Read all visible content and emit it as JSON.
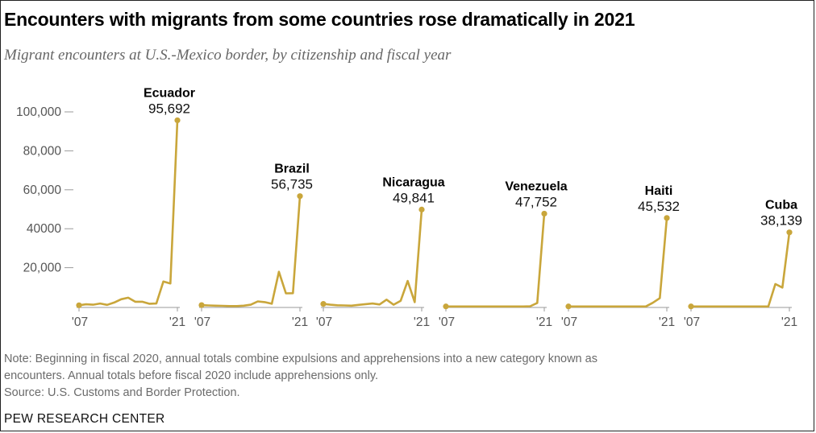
{
  "title": "Encounters with migrants from some countries rose dramatically in 2021",
  "subtitle": "Migrant encounters at U.S.-Mexico border, by citizenship and fiscal year",
  "note_line1": "Note: Beginning in fiscal 2020, annual totals combine expulsions and apprehensions into a new category known as",
  "note_line2": "encounters. Annual totals before fiscal 2020 include apprehensions only.",
  "source": "Source: U.S. Customs and Border Protection.",
  "footer": "PEW RESEARCH CENTER",
  "colors": {
    "line": "#c9a63b",
    "axis": "#9a9a9a",
    "tick_text": "#555555"
  },
  "chart_data": {
    "type": "line",
    "x": [
      2007,
      2008,
      2009,
      2010,
      2011,
      2012,
      2013,
      2014,
      2015,
      2016,
      2017,
      2018,
      2019,
      2020,
      2021
    ],
    "x_tick_labels": [
      "'07",
      "'21"
    ],
    "y_ticks": [
      20000,
      40000,
      60000,
      80000,
      100000
    ],
    "y_tick_labels": [
      "20,000",
      "40000",
      "60,000",
      "80,000",
      "100,000"
    ],
    "ylim": [
      0,
      100000
    ],
    "grid": false,
    "series": [
      {
        "name": "Ecuador",
        "values": [
          700,
          1200,
          1000,
          1600,
          900,
          2100,
          3800,
          4600,
          2500,
          2500,
          1500,
          1600,
          12900,
          11900,
          95692
        ],
        "label": "95,692"
      },
      {
        "name": "Brazil",
        "values": [
          800,
          600,
          500,
          400,
          300,
          300,
          500,
          1000,
          2700,
          2300,
          1500,
          17900,
          6800,
          6900,
          56735
        ],
        "label": "56,735"
      },
      {
        "name": "Nicaragua",
        "values": [
          1400,
          1000,
          700,
          600,
          500,
          900,
          1300,
          1600,
          1100,
          3600,
          1000,
          3000,
          13200,
          2300,
          49841
        ],
        "label": "49,841"
      },
      {
        "name": "Venezuela",
        "values": [
          100,
          100,
          100,
          100,
          100,
          100,
          100,
          100,
          100,
          100,
          100,
          100,
          200,
          1900,
          47752
        ],
        "label": "47,752"
      },
      {
        "name": "Haiti",
        "values": [
          100,
          100,
          100,
          100,
          100,
          100,
          100,
          100,
          100,
          100,
          100,
          100,
          2000,
          4400,
          45532
        ],
        "label": "45,532"
      },
      {
        "name": "Cuba",
        "values": [
          100,
          100,
          100,
          100,
          100,
          100,
          100,
          100,
          100,
          100,
          100,
          100,
          11600,
          9800,
          38139
        ],
        "label": "38,139"
      }
    ]
  }
}
